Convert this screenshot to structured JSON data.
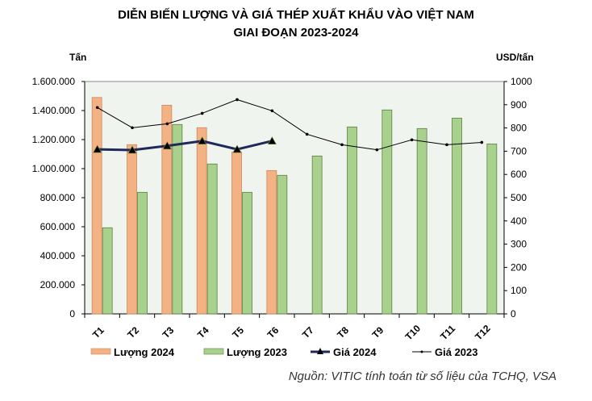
{
  "chart_data": {
    "type": "bar",
    "title": [
      "DIỄN BIẾN LƯỢNG VÀ GIÁ THÉP XUẤT KHẨU VÀO VIỆT NAM",
      "GIAI ĐOẠN 2023-2024"
    ],
    "ylabel_left": "Tấn",
    "ylabel_right": "USD/tấn",
    "categories": [
      "T1",
      "T2",
      "T3",
      "T4",
      "T5",
      "T6",
      "T7",
      "T8",
      "T9",
      "T10",
      "T11",
      "T12"
    ],
    "ylim_left": [
      0,
      1600000
    ],
    "yticks_left": [
      "0",
      "200.000",
      "400.000",
      "600.000",
      "800.000",
      "1.000.000",
      "1.200.000",
      "1.400.000",
      "1.600.000"
    ],
    "ylim_right": [
      0,
      1000
    ],
    "yticks_right": [
      "0",
      "100",
      "200",
      "300",
      "400",
      "500",
      "600",
      "700",
      "800",
      "900",
      "1000"
    ],
    "series": [
      {
        "name": "Lượng 2024",
        "kind": "bar",
        "axis": "left",
        "color": "#f4b183",
        "values": [
          1490000,
          1165000,
          1437000,
          1282000,
          1115000,
          987000,
          null,
          null,
          null,
          null,
          null,
          null
        ]
      },
      {
        "name": "Lượng 2023",
        "kind": "bar",
        "axis": "left",
        "color": "#a9d18e",
        "values": [
          593000,
          837000,
          1304000,
          1032000,
          837000,
          954000,
          1087000,
          1287000,
          1404000,
          1276000,
          1348000,
          1170000
        ]
      },
      {
        "name": "Giá 2024",
        "kind": "line",
        "axis": "right",
        "color": "#1f2a5a",
        "marker": "triangle",
        "values": [
          708,
          705,
          723,
          744,
          708,
          744,
          null,
          null,
          null,
          null,
          null,
          null
        ]
      },
      {
        "name": "Giá 2023",
        "kind": "line",
        "axis": "right",
        "color": "#000000",
        "marker": "dot",
        "values": [
          888,
          801,
          818,
          863,
          922,
          874,
          773,
          728,
          706,
          749,
          728,
          738
        ]
      }
    ],
    "legend": "bottom",
    "grid": false,
    "plot_background": "#eff5ee"
  },
  "source": "Nguồn: VITIC tính toán từ số liệu của TCHQ, VSA"
}
